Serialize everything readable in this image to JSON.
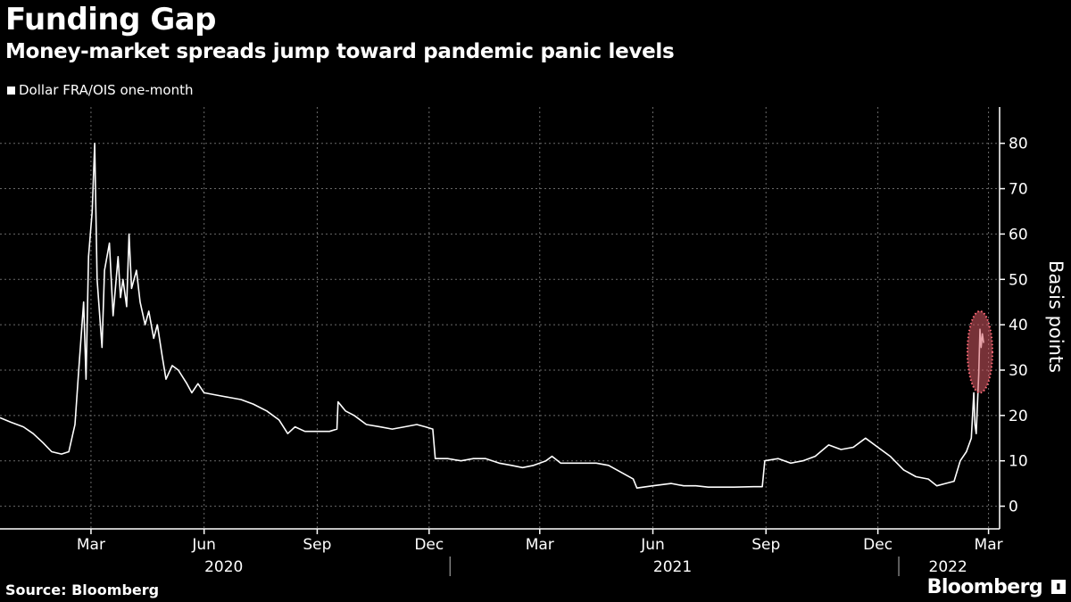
{
  "chart_data": {
    "type": "line",
    "title": "Funding Gap",
    "subtitle": "Money-market spreads jump toward pandemic panic levels",
    "ylabel": "Basis points",
    "ylim": [
      -5,
      88
    ],
    "yticks": [
      0,
      10,
      20,
      30,
      40,
      50,
      60,
      70,
      80
    ],
    "xlim": [
      "2020-01-01",
      "2022-03-24"
    ],
    "xticks": [
      {
        "label": "Mar",
        "date": "2020-03-15"
      },
      {
        "label": "Jun",
        "date": "2020-06-15"
      },
      {
        "label": "Sep",
        "date": "2020-09-15"
      },
      {
        "label": "Dec",
        "date": "2020-12-15"
      },
      {
        "label": "Mar",
        "date": "2021-03-15"
      },
      {
        "label": "Jun",
        "date": "2021-06-15"
      },
      {
        "label": "Sep",
        "date": "2021-09-15"
      },
      {
        "label": "Dec",
        "date": "2021-12-15"
      },
      {
        "label": "Mar",
        "date": "2022-03-15"
      }
    ],
    "years": [
      {
        "label": "2020",
        "center": "2020-07-01"
      },
      {
        "label": "2021",
        "center": "2021-07-01"
      },
      {
        "label": "2022",
        "center": "2022-02-10"
      }
    ],
    "year_boundaries": [
      "2021-01-01",
      "2022-01-01"
    ],
    "grid": true,
    "legend_position": "top-left",
    "highlight": {
      "date": "2022-03-08",
      "y_low": 25,
      "y_high": 43
    },
    "series": [
      {
        "name": "Dollar FRA/OIS one-month",
        "color": "#ffffff",
        "points": [
          [
            "2020-01-01",
            19.5
          ],
          [
            "2020-01-10",
            18.5
          ],
          [
            "2020-01-20",
            17.5
          ],
          [
            "2020-01-28",
            16
          ],
          [
            "2020-02-05",
            14
          ],
          [
            "2020-02-12",
            12
          ],
          [
            "2020-02-20",
            11.5
          ],
          [
            "2020-02-26",
            12
          ],
          [
            "2020-03-02",
            18
          ],
          [
            "2020-03-05",
            30
          ],
          [
            "2020-03-09",
            45
          ],
          [
            "2020-03-11",
            28
          ],
          [
            "2020-03-13",
            55
          ],
          [
            "2020-03-16",
            65
          ],
          [
            "2020-03-18",
            80
          ],
          [
            "2020-03-20",
            50
          ],
          [
            "2020-03-24",
            35
          ],
          [
            "2020-03-26",
            52
          ],
          [
            "2020-03-30",
            58
          ],
          [
            "2020-04-02",
            42
          ],
          [
            "2020-04-06",
            55
          ],
          [
            "2020-04-08",
            46
          ],
          [
            "2020-04-10",
            50
          ],
          [
            "2020-04-13",
            44
          ],
          [
            "2020-04-15",
            60
          ],
          [
            "2020-04-17",
            48
          ],
          [
            "2020-04-21",
            52
          ],
          [
            "2020-04-24",
            45
          ],
          [
            "2020-04-28",
            40
          ],
          [
            "2020-05-01",
            43
          ],
          [
            "2020-05-05",
            37
          ],
          [
            "2020-05-08",
            40
          ],
          [
            "2020-05-12",
            33
          ],
          [
            "2020-05-15",
            28
          ],
          [
            "2020-05-20",
            31
          ],
          [
            "2020-05-25",
            30
          ],
          [
            "2020-06-01",
            27
          ],
          [
            "2020-06-05",
            25
          ],
          [
            "2020-06-10",
            27
          ],
          [
            "2020-06-15",
            25
          ],
          [
            "2020-06-25",
            24.5
          ],
          [
            "2020-07-05",
            24
          ],
          [
            "2020-07-15",
            23.5
          ],
          [
            "2020-07-25",
            22.5
          ],
          [
            "2020-08-05",
            21
          ],
          [
            "2020-08-15",
            19
          ],
          [
            "2020-08-22",
            16
          ],
          [
            "2020-08-28",
            17.5
          ],
          [
            "2020-09-05",
            16.5
          ],
          [
            "2020-09-15",
            16.5
          ],
          [
            "2020-09-25",
            16.5
          ],
          [
            "2020-10-01",
            17
          ],
          [
            "2020-10-02",
            23
          ],
          [
            "2020-10-08",
            21
          ],
          [
            "2020-10-15",
            20
          ],
          [
            "2020-10-25",
            18
          ],
          [
            "2020-11-05",
            17.5
          ],
          [
            "2020-11-15",
            17
          ],
          [
            "2020-11-25",
            17.5
          ],
          [
            "2020-12-05",
            18
          ],
          [
            "2020-12-12",
            17.5
          ],
          [
            "2020-12-18",
            17
          ],
          [
            "2020-12-20",
            10.5
          ],
          [
            "2020-12-30",
            10.5
          ],
          [
            "2021-01-10",
            10
          ],
          [
            "2021-01-20",
            10.5
          ],
          [
            "2021-01-30",
            10.5
          ],
          [
            "2021-02-10",
            9.5
          ],
          [
            "2021-02-20",
            9
          ],
          [
            "2021-03-01",
            8.5
          ],
          [
            "2021-03-10",
            9
          ],
          [
            "2021-03-20",
            10
          ],
          [
            "2021-03-25",
            11
          ],
          [
            "2021-04-01",
            9.5
          ],
          [
            "2021-04-15",
            9.5
          ],
          [
            "2021-04-30",
            9.5
          ],
          [
            "2021-05-10",
            9
          ],
          [
            "2021-05-20",
            7.5
          ],
          [
            "2021-05-30",
            6
          ],
          [
            "2021-06-02",
            4
          ],
          [
            "2021-06-15",
            4.5
          ],
          [
            "2021-06-30",
            5
          ],
          [
            "2021-07-10",
            4.5
          ],
          [
            "2021-07-20",
            4.5
          ],
          [
            "2021-07-30",
            4.2
          ],
          [
            "2021-08-10",
            4.2
          ],
          [
            "2021-08-20",
            4.2
          ],
          [
            "2021-09-05",
            4.3
          ],
          [
            "2021-09-12",
            4.3
          ],
          [
            "2021-09-14",
            10
          ],
          [
            "2021-09-25",
            10.5
          ],
          [
            "2021-10-05",
            9.5
          ],
          [
            "2021-10-15",
            10
          ],
          [
            "2021-10-25",
            11
          ],
          [
            "2021-11-05",
            13.5
          ],
          [
            "2021-11-15",
            12.5
          ],
          [
            "2021-11-25",
            13
          ],
          [
            "2021-12-05",
            15
          ],
          [
            "2021-12-15",
            13
          ],
          [
            "2021-12-25",
            11
          ],
          [
            "2022-01-05",
            8
          ],
          [
            "2022-01-15",
            6.5
          ],
          [
            "2022-01-25",
            6
          ],
          [
            "2022-02-01",
            4.5
          ],
          [
            "2022-02-08",
            5
          ],
          [
            "2022-02-15",
            5.5
          ],
          [
            "2022-02-20",
            10
          ],
          [
            "2022-02-25",
            12
          ],
          [
            "2022-03-01",
            15
          ],
          [
            "2022-03-02",
            20
          ],
          [
            "2022-03-03",
            25
          ],
          [
            "2022-03-04",
            18
          ],
          [
            "2022-03-05",
            16
          ],
          [
            "2022-03-07",
            29
          ],
          [
            "2022-03-08",
            39
          ],
          [
            "2022-03-09",
            35
          ],
          [
            "2022-03-10",
            38
          ],
          [
            "2022-03-11",
            36
          ]
        ]
      }
    ]
  },
  "footer": {
    "source": "Source: Bloomberg",
    "brand": "Bloomberg"
  }
}
